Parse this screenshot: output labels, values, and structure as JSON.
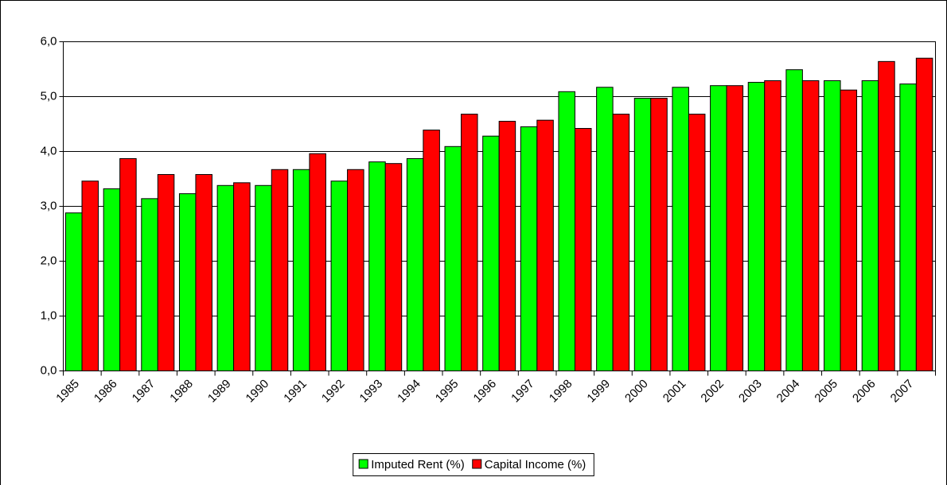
{
  "chart_data": {
    "type": "bar",
    "categories": [
      "1985",
      "1986",
      "1987",
      "1988",
      "1989",
      "1990",
      "1991",
      "1992",
      "1993",
      "1994",
      "1995",
      "1996",
      "1997",
      "1998",
      "1999",
      "2000",
      "2001",
      "2002",
      "2003",
      "2004",
      "2005",
      "2006",
      "2007"
    ],
    "series": [
      {
        "name": "Imputed Rent (%)",
        "color": "#00ff00",
        "values": [
          2.88,
          3.32,
          3.14,
          3.23,
          3.38,
          3.38,
          3.67,
          3.46,
          3.81,
          3.87,
          4.09,
          4.28,
          4.45,
          5.09,
          5.17,
          4.97,
          5.17,
          5.2,
          5.26,
          5.49,
          5.29,
          5.29,
          5.23
        ]
      },
      {
        "name": "Capital Income (%)",
        "color": "#ff0000",
        "values": [
          3.46,
          3.87,
          3.58,
          3.58,
          3.43,
          3.67,
          3.96,
          3.67,
          3.78,
          4.39,
          4.68,
          4.55,
          4.57,
          4.42,
          4.68,
          4.97,
          4.68,
          5.2,
          5.29,
          5.29,
          5.12,
          5.64,
          5.7
        ]
      }
    ],
    "ylim": [
      0,
      6
    ],
    "yticks": [
      {
        "value": 0,
        "label": "0,0"
      },
      {
        "value": 1,
        "label": "1,0"
      },
      {
        "value": 2,
        "label": "2,0"
      },
      {
        "value": 3,
        "label": "3,0"
      },
      {
        "value": 4,
        "label": "4,0"
      },
      {
        "value": 5,
        "label": "5,0"
      },
      {
        "value": 6,
        "label": "6,0"
      }
    ],
    "grid": true,
    "legend": "bottom"
  }
}
